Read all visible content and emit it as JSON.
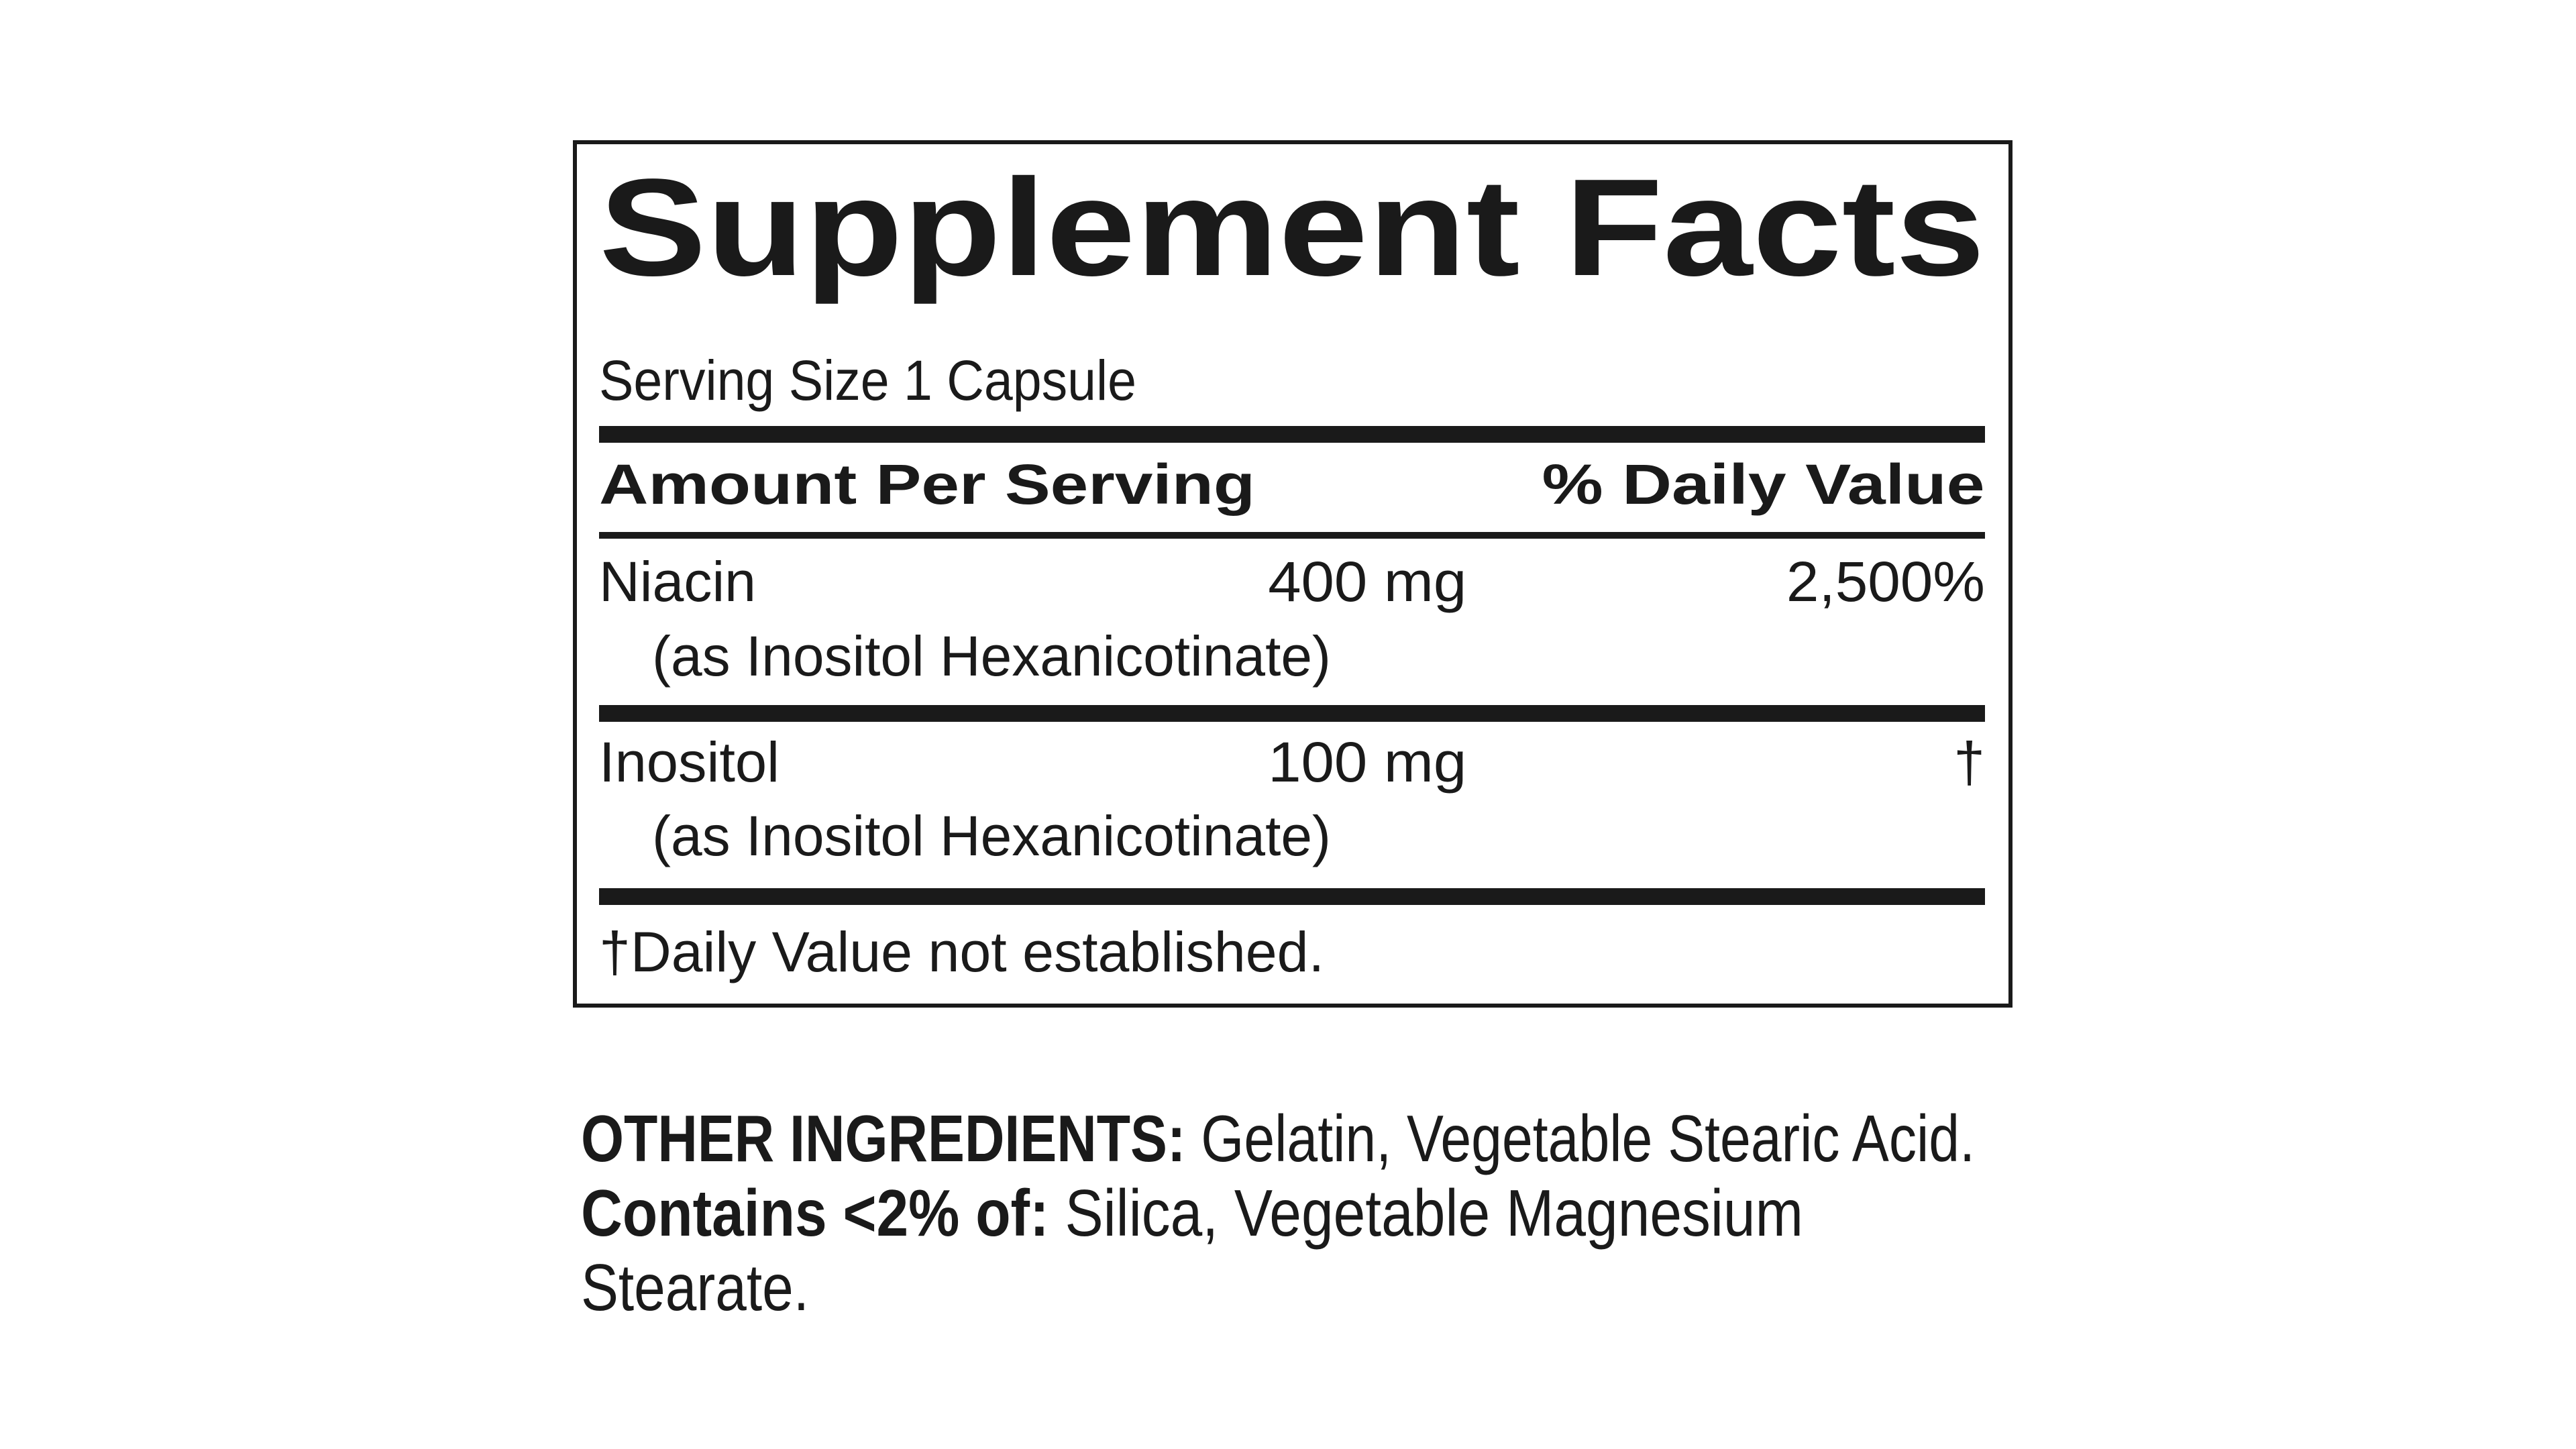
{
  "panel": {
    "title": "Supplement Facts",
    "serving_size": "Serving Size 1 Capsule",
    "header": {
      "amount": "Amount Per Serving",
      "daily_value": "% Daily Value"
    },
    "rows": [
      {
        "name": "Niacin",
        "amount": "400 mg",
        "dv": "2,500%",
        "source": "(as Inositol Hexanicotinate)"
      },
      {
        "name": "Inositol",
        "amount": "100 mg",
        "dv": "†",
        "source": "(as Inositol Hexanicotinate)"
      }
    ],
    "footnote": "†Daily Value not established."
  },
  "other": {
    "ingredients_label": "OTHER INGREDIENTS:",
    "ingredients_text": " Gelatin, Vegetable Stearic Acid.",
    "contains_label": "Contains <2% of:",
    "contains_text_1": " Silica, Vegetable Magnesium",
    "contains_text_2": "Stearate."
  }
}
